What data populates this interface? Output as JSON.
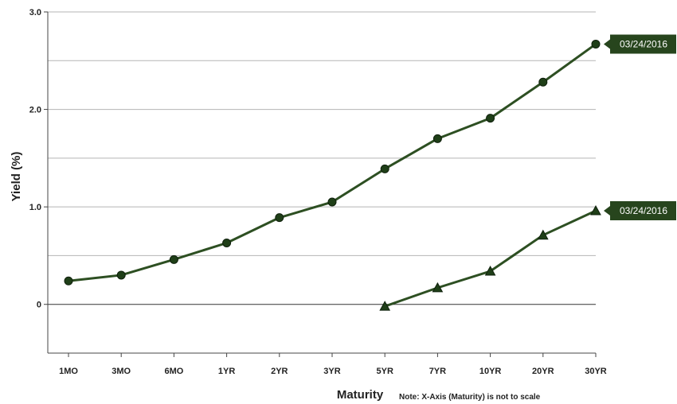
{
  "chart_data": {
    "type": "line",
    "categories": [
      "1MO",
      "3MO",
      "6MO",
      "1YR",
      "2YR",
      "3YR",
      "5YR",
      "7YR",
      "10YR",
      "20YR",
      "30YR"
    ],
    "series": [
      {
        "name": "03/24/2016",
        "marker": "circle",
        "values": [
          0.24,
          0.3,
          0.46,
          0.63,
          0.89,
          1.05,
          1.39,
          1.7,
          1.91,
          2.28,
          2.67
        ]
      },
      {
        "name": "03/24/2016",
        "marker": "triangle",
        "values": [
          null,
          null,
          null,
          null,
          null,
          null,
          -0.02,
          0.17,
          0.34,
          0.71,
          0.96
        ]
      }
    ],
    "ylabel": "Yield (%)",
    "xlabel": "Maturity",
    "note": "Note: X-Axis (Maturity) is not to scale",
    "ylim": [
      -0.5,
      3.0
    ],
    "yticks": [
      {
        "value": 3.0,
        "label": "3.0"
      },
      {
        "value": 2.0,
        "label": "2.0"
      },
      {
        "value": 1.0,
        "label": "1.0"
      },
      {
        "value": 0,
        "label": "0"
      }
    ],
    "minor_gridlines": [
      2.5,
      1.5,
      0.5,
      -0.5
    ],
    "grid": true,
    "colors": {
      "line": "#2d4f22",
      "marker": "#1f3f18",
      "tag": "#27451d",
      "grid": "#b5b5b5",
      "zero": "#333333"
    }
  }
}
